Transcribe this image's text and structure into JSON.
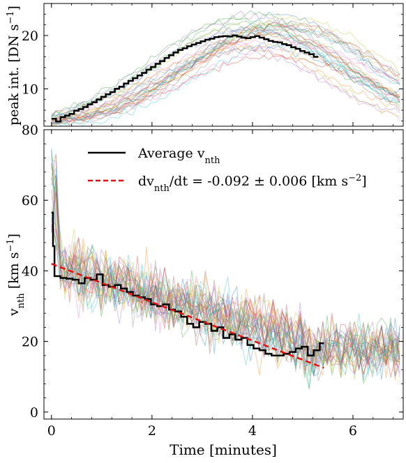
{
  "chart_data": [
    {
      "type": "line",
      "panel": "top",
      "ylabel_main": "peak int.",
      "ylabel_unit": "[DN s",
      "ylabel_sup": "−1",
      "ylabel_close": "]",
      "xlim": [
        -0.15,
        7.0
      ],
      "ylim": [
        3,
        26
      ],
      "yticks": [
        "10",
        "20"
      ],
      "ytick_values": [
        10,
        20
      ],
      "grid": false,
      "series": [
        {
          "style": "step",
          "color": "#000000",
          "x": [
            0.0,
            0.09,
            0.18,
            0.27,
            0.36,
            0.45,
            0.54,
            0.63,
            0.72,
            0.81,
            0.9,
            0.99,
            1.08,
            1.17,
            1.26,
            1.35,
            1.44,
            1.53,
            1.62,
            1.71,
            1.8,
            1.89,
            1.98,
            2.07,
            2.16,
            2.25,
            2.34,
            2.43,
            2.52,
            2.61,
            2.7,
            2.79,
            2.88,
            2.97,
            3.06,
            3.15,
            3.24,
            3.33,
            3.42,
            3.51,
            3.6,
            3.69,
            3.78,
            3.87,
            3.96,
            4.05,
            4.14,
            4.23,
            4.32,
            4.41,
            4.5,
            4.59,
            4.68,
            4.77,
            4.86,
            4.95,
            5.04,
            5.13,
            5.22,
            5.31
          ],
          "y": [
            4.4,
            3.9,
            4.7,
            5.0,
            5.3,
            5.9,
            6.2,
            6.6,
            7.1,
            7.5,
            8.0,
            8.5,
            9.0,
            9.4,
            10.0,
            10.4,
            11.0,
            11.5,
            12.0,
            12.5,
            13.0,
            13.6,
            14.1,
            14.7,
            15.2,
            15.8,
            16.3,
            16.8,
            17.3,
            17.6,
            18.0,
            18.3,
            18.6,
            18.9,
            19.2,
            19.4,
            19.7,
            19.8,
            19.9,
            19.8,
            20.0,
            19.8,
            19.6,
            19.5,
            19.7,
            19.9,
            19.6,
            19.3,
            19.0,
            18.8,
            18.7,
            18.4,
            18.2,
            17.8,
            17.5,
            17.1,
            16.8,
            16.5,
            16.0,
            16.0
          ]
        }
      ]
    },
    {
      "type": "line",
      "panel": "bottom",
      "xlabel": "Time [minutes]",
      "ylabel_main": "v",
      "ylabel_sub": "nth",
      "ylabel_unit": "[km s",
      "ylabel_sup": "−1",
      "ylabel_close": "]",
      "xlim": [
        -0.15,
        7.0
      ],
      "ylim": [
        -2,
        80
      ],
      "xticks": [
        "0",
        "2",
        "4",
        "6"
      ],
      "xtick_values": [
        0,
        2,
        4,
        6
      ],
      "yticks": [
        "0",
        "20",
        "40",
        "60",
        "80"
      ],
      "ytick_values": [
        0,
        20,
        40,
        60,
        80
      ],
      "grid": false,
      "legend_placement": "top",
      "legend": [
        {
          "text_main": "Average v",
          "text_sub": "nth",
          "text_tail": "",
          "text_sup": "",
          "text_end": "",
          "style": "solid",
          "color": "#000000"
        },
        {
          "text_main": "dv",
          "text_sub": "nth",
          "text_tail": "/dt = -0.092 ± 0.006 [km s",
          "text_sup": "−2",
          "text_end": "]",
          "style": "dashed",
          "color": "#e01010"
        }
      ],
      "series": [
        {
          "style": "step",
          "color": "#000000",
          "x": [
            0.0,
            0.03,
            0.06,
            0.18,
            0.3,
            0.42,
            0.54,
            0.66,
            0.78,
            0.9,
            1.02,
            1.14,
            1.26,
            1.38,
            1.5,
            1.62,
            1.74,
            1.86,
            1.98,
            2.1,
            2.22,
            2.34,
            2.46,
            2.58,
            2.7,
            2.82,
            2.94,
            3.06,
            3.18,
            3.3,
            3.42,
            3.54,
            3.66,
            3.78,
            3.9,
            4.02,
            4.14,
            4.26,
            4.38,
            4.5,
            4.62,
            4.74,
            4.86,
            4.98,
            5.1,
            5.22,
            5.34,
            5.42
          ],
          "y": [
            56.5,
            47.0,
            38.5,
            38.0,
            37.8,
            37.5,
            36.5,
            38.0,
            37.5,
            39.0,
            36.0,
            35.5,
            36.0,
            35.0,
            34.0,
            33.0,
            32.5,
            32.0,
            30.5,
            30.0,
            30.5,
            29.0,
            28.5,
            27.0,
            25.0,
            24.0,
            25.5,
            25.0,
            23.0,
            24.0,
            21.0,
            22.0,
            20.5,
            21.0,
            19.0,
            18.0,
            17.5,
            16.5,
            16.0,
            16.0,
            16.5,
            17.0,
            18.0,
            18.5,
            16.0,
            17.5,
            19.5,
            19.5
          ]
        },
        {
          "style": "dashed",
          "color": "#e01010",
          "x": [
            0.0,
            5.42
          ],
          "y": [
            42.0,
            12.5
          ]
        }
      ]
    }
  ],
  "background_traces": {
    "count": 30,
    "colors": [
      "#1f77b4",
      "#ff7f0e",
      "#2ca02c",
      "#d62728",
      "#9467bd",
      "#8c564b",
      "#e377c2",
      "#7f7f7f",
      "#bcbd22",
      "#17becf"
    ]
  }
}
